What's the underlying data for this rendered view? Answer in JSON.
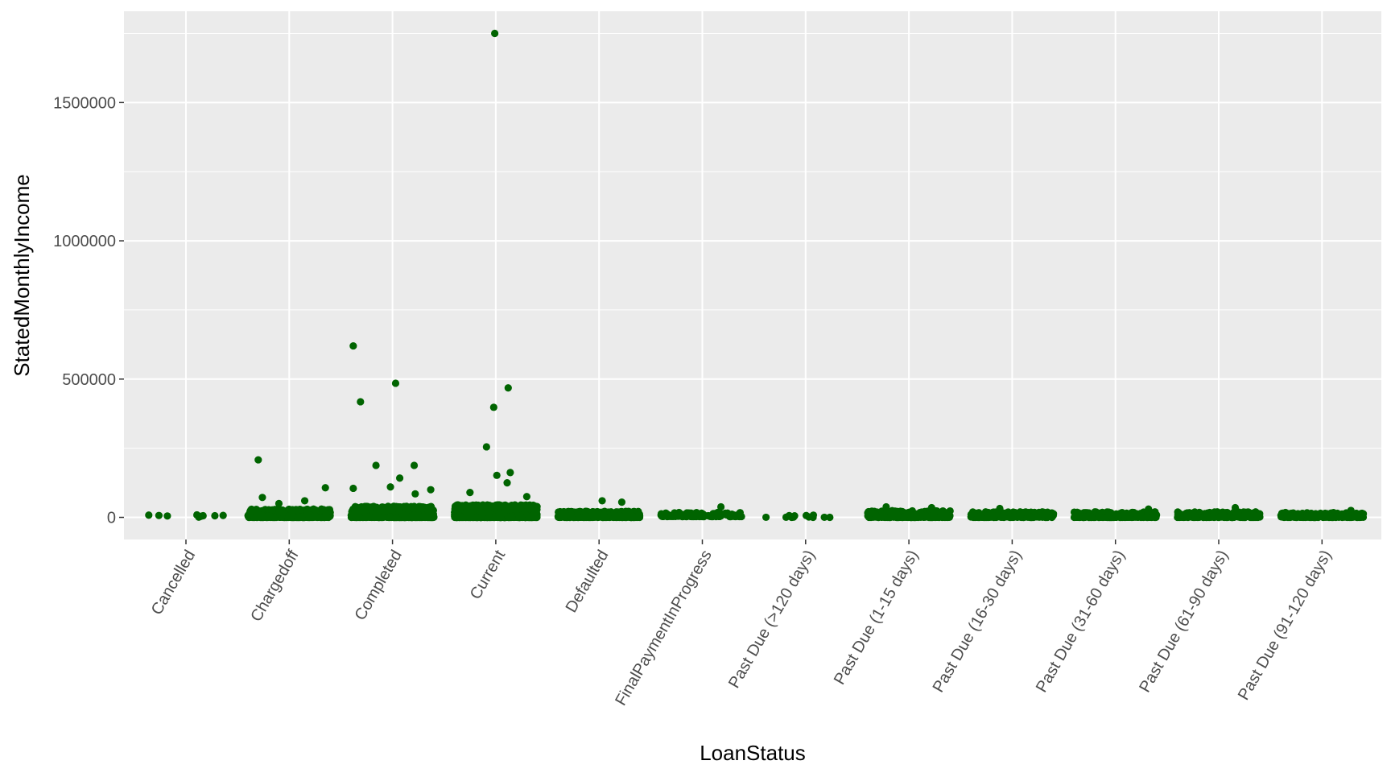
{
  "chart_data": {
    "type": "scatter",
    "xlabel": "LoanStatus",
    "ylabel": "StatedMonthlyIncome",
    "categories": [
      "Cancelled",
      "Chargedoff",
      "Completed",
      "Current",
      "Defaulted",
      "FinalPaymentInProgress",
      "Past Due (>120 days)",
      "Past Due (1-15 days)",
      "Past Due (16-30 days)",
      "Past Due (31-60 days)",
      "Past Due (61-90 days)",
      "Past Due (91-120 days)"
    ],
    "y_ticks": [
      {
        "value": 0,
        "label": "0"
      },
      {
        "value": 500000,
        "label": "500000"
      },
      {
        "value": 1000000,
        "label": "1000000"
      },
      {
        "value": 1500000,
        "label": "1500000"
      }
    ],
    "ylim": [
      -80000,
      1830000
    ],
    "grid": true,
    "jitter_width": 0.4,
    "point_color": "#006400",
    "panel_background": "#ebebeb",
    "grid_color": "#ffffff",
    "clusters": [
      {
        "category": "Cancelled",
        "count": 5,
        "y_range": [
          0,
          9000
        ]
      },
      {
        "category": "Chargedoff",
        "count": 600,
        "y_range": [
          0,
          30000
        ]
      },
      {
        "category": "Completed",
        "count": 900,
        "y_range": [
          0,
          40000
        ]
      },
      {
        "category": "Current",
        "count": 1300,
        "y_range": [
          0,
          45000
        ]
      },
      {
        "category": "Defaulted",
        "count": 450,
        "y_range": [
          0,
          22000
        ]
      },
      {
        "category": "FinalPaymentInProgress",
        "count": 150,
        "y_range": [
          3000,
          18000
        ]
      },
      {
        "category": "Past Due (>120 days)",
        "count": 12,
        "y_range": [
          0,
          10000
        ]
      },
      {
        "category": "Past Due (1-15 days)",
        "count": 400,
        "y_range": [
          0,
          24000
        ]
      },
      {
        "category": "Past Due (16-30 days)",
        "count": 250,
        "y_range": [
          0,
          20000
        ]
      },
      {
        "category": "Past Due (31-60 days)",
        "count": 300,
        "y_range": [
          0,
          20000
        ]
      },
      {
        "category": "Past Due (61-90 days)",
        "count": 250,
        "y_range": [
          0,
          20000
        ]
      },
      {
        "category": "Past Due (91-120 days)",
        "count": 250,
        "y_range": [
          0,
          18000
        ]
      }
    ],
    "points": [
      {
        "category": "Cancelled",
        "offset": -0.36,
        "y": 8000
      },
      {
        "category": "Cancelled",
        "offset": -0.18,
        "y": 5000
      },
      {
        "category": "Cancelled",
        "offset": 0.28,
        "y": 6000
      },
      {
        "category": "Cancelled",
        "offset": 0.36,
        "y": 7000
      },
      {
        "category": "Chargedoff",
        "offset": -0.3,
        "y": 208000
      },
      {
        "category": "Chargedoff",
        "offset": -0.26,
        "y": 72000
      },
      {
        "category": "Chargedoff",
        "offset": 0.35,
        "y": 107000
      },
      {
        "category": "Chargedoff",
        "offset": -0.1,
        "y": 50000
      },
      {
        "category": "Chargedoff",
        "offset": 0.15,
        "y": 60000
      },
      {
        "category": "Completed",
        "offset": -0.38,
        "y": 620000
      },
      {
        "category": "Completed",
        "offset": -0.31,
        "y": 418000
      },
      {
        "category": "Completed",
        "offset": 0.03,
        "y": 485000
      },
      {
        "category": "Completed",
        "offset": -0.16,
        "y": 188000
      },
      {
        "category": "Completed",
        "offset": 0.21,
        "y": 188000
      },
      {
        "category": "Completed",
        "offset": 0.07,
        "y": 142000
      },
      {
        "category": "Completed",
        "offset": -0.02,
        "y": 110000
      },
      {
        "category": "Completed",
        "offset": 0.37,
        "y": 100000
      },
      {
        "category": "Completed",
        "offset": -0.38,
        "y": 105000
      },
      {
        "category": "Completed",
        "offset": 0.22,
        "y": 85000
      },
      {
        "category": "Current",
        "offset": -0.01,
        "y": 1750000
      },
      {
        "category": "Current",
        "offset": 0.12,
        "y": 468000
      },
      {
        "category": "Current",
        "offset": -0.02,
        "y": 398000
      },
      {
        "category": "Current",
        "offset": -0.09,
        "y": 255000
      },
      {
        "category": "Current",
        "offset": 0.14,
        "y": 162000
      },
      {
        "category": "Current",
        "offset": 0.01,
        "y": 152000
      },
      {
        "category": "Current",
        "offset": 0.11,
        "y": 125000
      },
      {
        "category": "Current",
        "offset": -0.25,
        "y": 90000
      },
      {
        "category": "Current",
        "offset": 0.3,
        "y": 75000
      },
      {
        "category": "Defaulted",
        "offset": 0.03,
        "y": 60000
      },
      {
        "category": "Defaulted",
        "offset": 0.22,
        "y": 55000
      },
      {
        "category": "FinalPaymentInProgress",
        "offset": 0.18,
        "y": 38000
      },
      {
        "category": "Past Due (1-15 days)",
        "offset": -0.22,
        "y": 38000
      },
      {
        "category": "Past Due (1-15 days)",
        "offset": 0.22,
        "y": 35000
      },
      {
        "category": "Past Due (16-30 days)",
        "offset": -0.12,
        "y": 32000
      },
      {
        "category": "Past Due (31-60 days)",
        "offset": 0.32,
        "y": 30000
      },
      {
        "category": "Past Due (61-90 days)",
        "offset": 0.16,
        "y": 35000
      },
      {
        "category": "Past Due (91-120 days)",
        "offset": 0.28,
        "y": 25000
      }
    ]
  }
}
